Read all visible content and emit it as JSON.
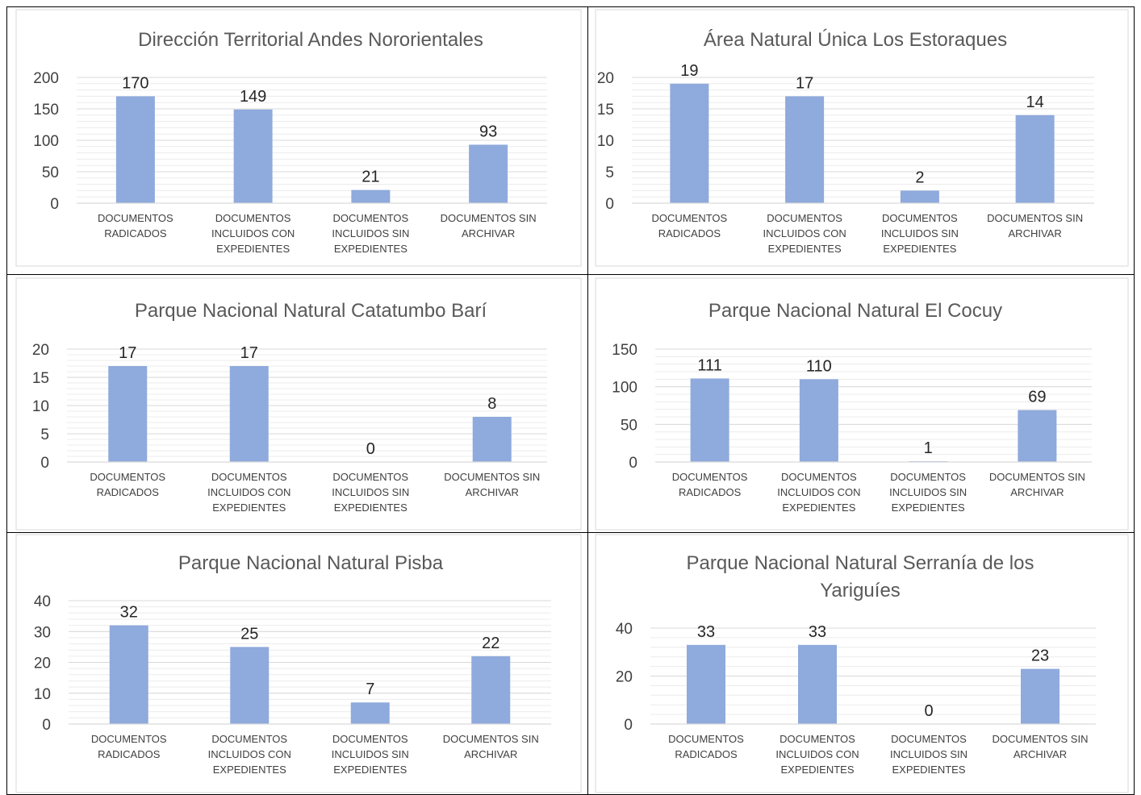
{
  "colors": {
    "bar": "#8faadc",
    "grid": "#d9d9d9",
    "minor_grid": "#ececec",
    "border": "#000000"
  },
  "chart_data": [
    {
      "type": "bar",
      "title": "Dirección Territorial Andes Nororientales",
      "categories": [
        "DOCUMENTOS RADICADOS",
        "DOCUMENTOS INCLUIDOS CON EXPEDIENTES",
        "DOCUMENTOS INCLUIDOS SIN EXPEDIENTES",
        "DOCUMENTOS SIN ARCHIVAR"
      ],
      "values": [
        170,
        149,
        21,
        93
      ],
      "yticks": [
        0,
        50,
        100,
        150,
        200
      ],
      "ylim": [
        0,
        200
      ],
      "grid": true
    },
    {
      "type": "bar",
      "title": "Área Natural Única Los Estoraques",
      "categories": [
        "DOCUMENTOS RADICADOS",
        "DOCUMENTOS INCLUIDOS CON EXPEDIENTES",
        "DOCUMENTOS INCLUIDOS SIN EXPEDIENTES",
        "DOCUMENTOS SIN ARCHIVAR"
      ],
      "values": [
        19,
        17,
        2,
        14
      ],
      "yticks": [
        0,
        5,
        10,
        15,
        20
      ],
      "ylim": [
        0,
        20
      ],
      "grid": true
    },
    {
      "type": "bar",
      "title": "Parque Nacional Natural Catatumbo Barí",
      "categories": [
        "DOCUMENTOS RADICADOS",
        "DOCUMENTOS INCLUIDOS CON EXPEDIENTES",
        "DOCUMENTOS INCLUIDOS SIN EXPEDIENTES",
        "DOCUMENTOS SIN ARCHIVAR"
      ],
      "values": [
        17,
        17,
        0,
        8
      ],
      "yticks": [
        0,
        5,
        10,
        15,
        20
      ],
      "ylim": [
        0,
        20
      ],
      "grid": true
    },
    {
      "type": "bar",
      "title": "Parque Nacional Natural El Cocuy",
      "categories": [
        "DOCUMENTOS RADICADOS",
        "DOCUMENTOS INCLUIDOS CON EXPEDIENTES",
        "DOCUMENTOS INCLUIDOS SIN EXPEDIENTES",
        "DOCUMENTOS SIN ARCHIVAR"
      ],
      "values": [
        111,
        110,
        1,
        69
      ],
      "yticks": [
        0,
        50,
        100,
        150
      ],
      "ylim": [
        0,
        150
      ],
      "grid": true
    },
    {
      "type": "bar",
      "title": "Parque Nacional Natural Pisba",
      "categories": [
        "DOCUMENTOS RADICADOS",
        "DOCUMENTOS INCLUIDOS CON EXPEDIENTES",
        "DOCUMENTOS INCLUIDOS SIN EXPEDIENTES",
        "DOCUMENTOS SIN ARCHIVAR"
      ],
      "values": [
        32,
        25,
        7,
        22
      ],
      "yticks": [
        0,
        10,
        20,
        30,
        40
      ],
      "ylim": [
        0,
        40
      ],
      "grid": true
    },
    {
      "type": "bar",
      "title": "Parque Nacional Natural Serranía de los Yariguíes",
      "categories": [
        "DOCUMENTOS RADICADOS",
        "DOCUMENTOS INCLUIDOS CON EXPEDIENTES",
        "DOCUMENTOS INCLUIDOS SIN EXPEDIENTES",
        "DOCUMENTOS SIN ARCHIVAR"
      ],
      "values": [
        33,
        33,
        0,
        23
      ],
      "yticks": [
        0,
        20,
        40
      ],
      "ylim": [
        0,
        40
      ],
      "grid": true
    }
  ]
}
